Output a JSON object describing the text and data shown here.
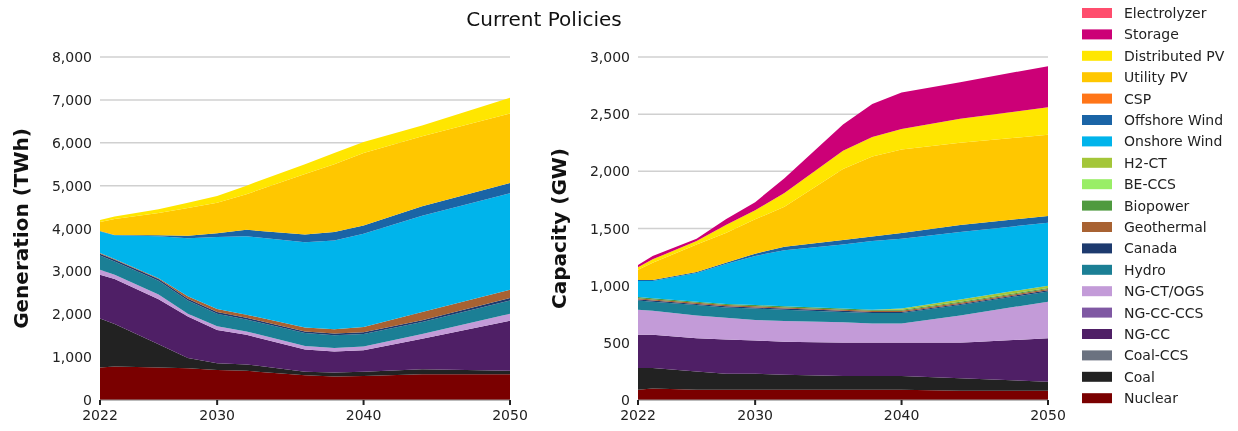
{
  "chart_data": [
    {
      "type": "area",
      "stacked": true,
      "title": "Current Policies",
      "ylabel": "Generation (TWh)",
      "x": [
        2022,
        2023,
        2026,
        2028,
        2030,
        2032,
        2036,
        2038,
        2040,
        2044,
        2050
      ],
      "xlim": [
        2022,
        2050
      ],
      "xticks": [
        2022,
        2030,
        2040,
        2050
      ],
      "ylim": [
        0,
        8000
      ],
      "yticks": [
        {
          "value": 0,
          "label": "0"
        },
        {
          "value": 1000,
          "label": "1,000"
        },
        {
          "value": 2000,
          "label": "2,000"
        },
        {
          "value": 3000,
          "label": "3,000"
        },
        {
          "value": 4000,
          "label": "4,000"
        },
        {
          "value": 5000,
          "label": "5,000"
        },
        {
          "value": 6000,
          "label": "6,000"
        },
        {
          "value": 7000,
          "label": "7,000"
        },
        {
          "value": 8000,
          "label": "8,000"
        }
      ],
      "grid": "y",
      "series": [
        {
          "color": "#7a0000",
          "values": [
            760,
            780,
            760,
            740,
            700,
            680,
            580,
            550,
            560,
            600,
            600
          ]
        },
        {
          "color": "#222222",
          "values": [
            1140,
            990,
            540,
            240,
            160,
            150,
            80,
            90,
            100,
            120,
            80
          ]
        },
        {
          "color": "#4f1f66",
          "values": [
            1020,
            1050,
            1050,
            970,
            770,
            690,
            520,
            490,
            500,
            710,
            1170
          ]
        },
        {
          "color": "#c39bd8",
          "values": [
            120,
            100,
            110,
            60,
            90,
            80,
            80,
            80,
            90,
            110,
            160
          ]
        },
        {
          "color": "#1b7f95",
          "values": [
            330,
            310,
            320,
            310,
            290,
            280,
            300,
            300,
            290,
            280,
            310
          ]
        },
        {
          "color": "#1d3a6e",
          "values": [
            40,
            40,
            40,
            40,
            40,
            40,
            40,
            40,
            40,
            40,
            60
          ]
        },
        {
          "color": "#a86232",
          "values": [
            20,
            20,
            20,
            60,
            70,
            70,
            90,
            100,
            120,
            190,
            190
          ]
        },
        {
          "color": "#00b4eb",
          "values": [
            500,
            550,
            980,
            1350,
            1680,
            1830,
            1990,
            2070,
            2180,
            2250,
            2250
          ]
        },
        {
          "color": "#1a64a6",
          "values": [
            10,
            10,
            20,
            60,
            90,
            150,
            180,
            200,
            190,
            220,
            240
          ]
        },
        {
          "color": "#ffc700",
          "values": [
            210,
            370,
            520,
            650,
            710,
            830,
            1410,
            1580,
            1690,
            1630,
            1620
          ]
        },
        {
          "color": "#ffe600",
          "values": [
            50,
            60,
            90,
            120,
            160,
            200,
            230,
            260,
            260,
            250,
            370
          ]
        }
      ]
    },
    {
      "type": "area",
      "stacked": true,
      "ylabel": "Capacity (GW)",
      "x": [
        2022,
        2023,
        2026,
        2028,
        2030,
        2032,
        2036,
        2038,
        2040,
        2044,
        2050
      ],
      "xlim": [
        2022,
        2050
      ],
      "xticks": [
        2022,
        2030,
        2040,
        2050
      ],
      "ylim": [
        0,
        3000
      ],
      "yticks": [
        {
          "value": 0,
          "label": "0"
        },
        {
          "value": 500,
          "label": "500"
        },
        {
          "value": 1000,
          "label": "1,000"
        },
        {
          "value": 1500,
          "label": "1,500"
        },
        {
          "value": 2000,
          "label": "2,000"
        },
        {
          "value": 2500,
          "label": "2,500"
        },
        {
          "value": 3000,
          "label": "3,000"
        }
      ],
      "grid": "y",
      "legend": "right",
      "series": [
        {
          "name": "Nuclear",
          "color": "#7a0000",
          "values": [
            90,
            100,
            90,
            90,
            90,
            90,
            90,
            90,
            90,
            80,
            80
          ]
        },
        {
          "name": "Coal",
          "color": "#222222",
          "values": [
            190,
            180,
            160,
            140,
            140,
            130,
            120,
            120,
            120,
            110,
            80
          ]
        },
        {
          "name": "Coal-CCS",
          "color": "#6b7280",
          "values": [
            null,
            null,
            null,
            null,
            null,
            null,
            null,
            null,
            null,
            null,
            null
          ]
        },
        {
          "name": "NG-CC",
          "color": "#4f1f66",
          "values": [
            290,
            290,
            290,
            300,
            290,
            290,
            290,
            290,
            290,
            310,
            380
          ]
        },
        {
          "name": "NG-CC-CCS",
          "color": "#7f58a3",
          "values": [
            null,
            null,
            null,
            null,
            null,
            null,
            null,
            null,
            null,
            null,
            null
          ]
        },
        {
          "name": "NG-CT/OGS",
          "color": "#c39bd8",
          "values": [
            220,
            210,
            200,
            190,
            180,
            180,
            180,
            170,
            170,
            240,
            320
          ]
        },
        {
          "name": "Hydro",
          "color": "#1b7f95",
          "values": [
            80,
            80,
            90,
            90,
            100,
            100,
            90,
            90,
            90,
            90,
            90
          ]
        },
        {
          "name": "Canada",
          "color": "#1d3a6e",
          "values": [
            10,
            10,
            10,
            10,
            10,
            10,
            10,
            10,
            10,
            10,
            10
          ]
        },
        {
          "name": "Geothermal",
          "color": "#a86232",
          "values": [
            10,
            10,
            10,
            10,
            10,
            10,
            10,
            10,
            10,
            10,
            10
          ]
        },
        {
          "name": "Biopower",
          "color": "#4f9a3f",
          "values": [
            10,
            10,
            10,
            10,
            10,
            10,
            10,
            10,
            10,
            10,
            10
          ]
        },
        {
          "name": "BE-CCS",
          "color": "#99ee66",
          "values": [
            null,
            null,
            null,
            null,
            null,
            null,
            null,
            null,
            null,
            null,
            null
          ]
        },
        {
          "name": "H2-CT",
          "color": "#a4c639",
          "values": [
            0,
            0,
            0,
            0,
            0,
            0,
            0,
            0,
            10,
            20,
            20
          ]
        },
        {
          "name": "Onshore Wind",
          "color": "#00b4eb",
          "values": [
            140,
            150,
            250,
            350,
            430,
            490,
            560,
            600,
            610,
            590,
            550
          ]
        },
        {
          "name": "Offshore Wind",
          "color": "#1a64a6",
          "values": [
            10,
            10,
            10,
            10,
            20,
            30,
            40,
            40,
            50,
            60,
            60
          ]
        },
        {
          "name": "CSP",
          "color": "#ff7518",
          "values": [
            null,
            null,
            null,
            null,
            null,
            null,
            null,
            null,
            null,
            null,
            null
          ]
        },
        {
          "name": "Utility PV",
          "color": "#ffc700",
          "values": [
            90,
            150,
            240,
            260,
            300,
            350,
            620,
            700,
            730,
            720,
            710
          ]
        },
        {
          "name": "Distributed PV",
          "color": "#ffe600",
          "values": [
            20,
            30,
            30,
            70,
            80,
            120,
            160,
            170,
            180,
            210,
            240
          ]
        },
        {
          "name": "Storage",
          "color": "#cc0077",
          "values": [
            20,
            30,
            20,
            50,
            70,
            130,
            230,
            290,
            320,
            320,
            360
          ]
        },
        {
          "name": "Electrolyzer",
          "color": "#ff4d6d",
          "values": [
            null,
            null,
            null,
            null,
            null,
            null,
            null,
            null,
            null,
            null,
            null
          ]
        }
      ]
    }
  ]
}
